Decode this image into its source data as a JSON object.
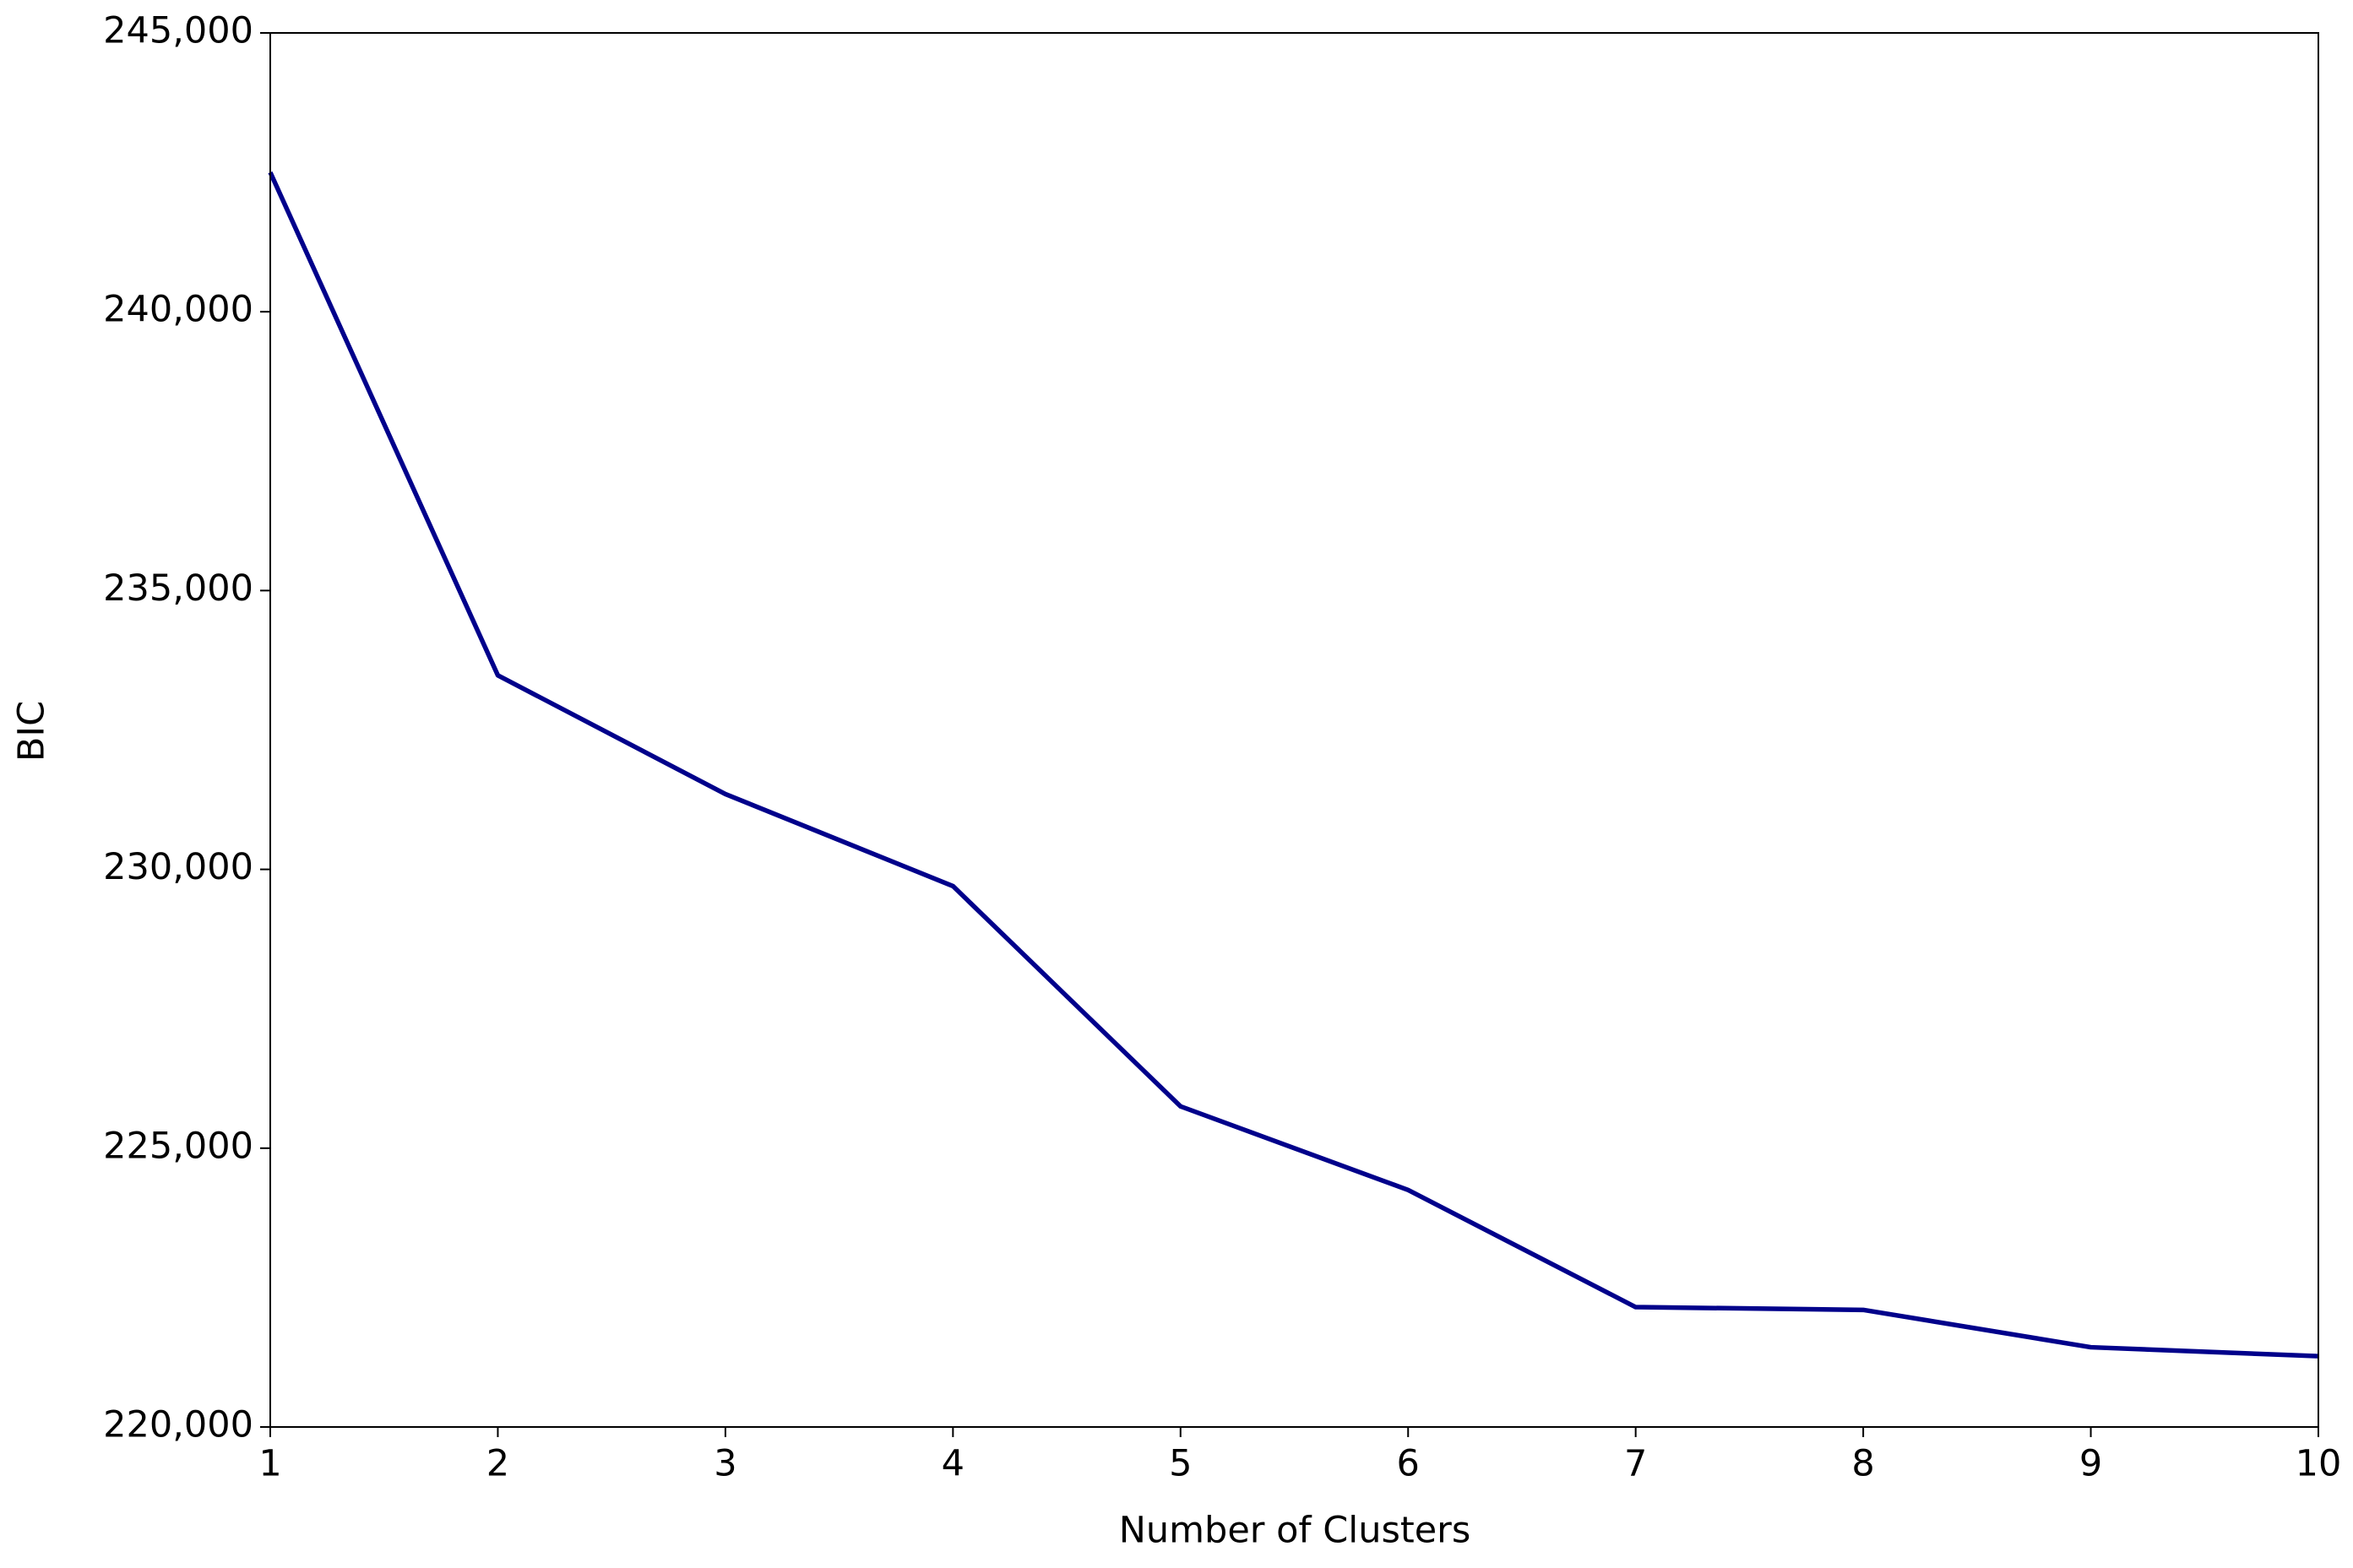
{
  "chart_data": {
    "type": "line",
    "x_label": "Number of Clusters",
    "y_label": "BIC",
    "x": [
      1,
      2,
      3,
      4,
      5,
      6,
      7,
      8,
      9,
      10
    ],
    "values": [
      242500,
      233480,
      231350,
      229700,
      225750,
      224250,
      222150,
      222100,
      221430,
      221270
    ],
    "color": "#00008b",
    "xlim": [
      1,
      10
    ],
    "xticks": [
      1,
      2,
      3,
      4,
      5,
      6,
      7,
      8,
      9,
      10
    ],
    "ylim": [
      220000,
      245000
    ],
    "yticks": [
      {
        "value": 220000,
        "label": "220,000"
      },
      {
        "value": 225000,
        "label": "225,000"
      },
      {
        "value": 230000,
        "label": "230,000"
      },
      {
        "value": 235000,
        "label": "235,000"
      },
      {
        "value": 240000,
        "label": "240,000"
      },
      {
        "value": 245000,
        "label": "245,000"
      }
    ],
    "grid": false
  }
}
